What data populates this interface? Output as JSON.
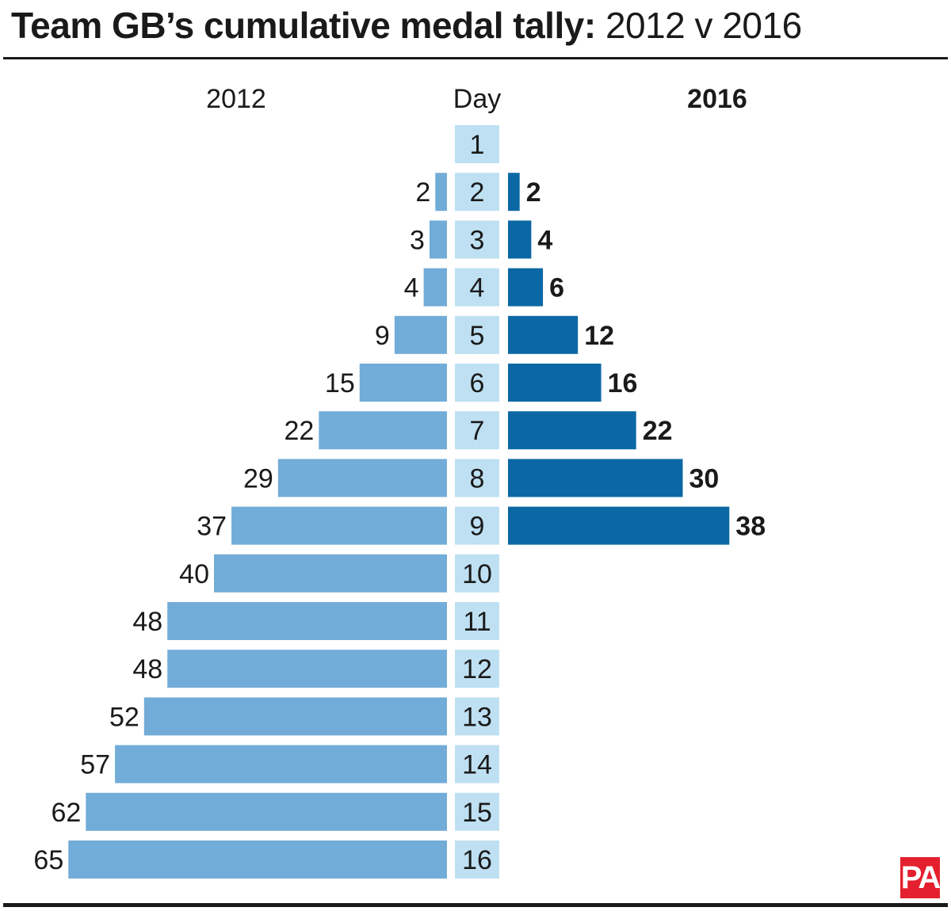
{
  "header": {
    "title_bold": "Team GB’s cumulative medal tally:",
    "title_light": "2012 v 2016"
  },
  "logo": {
    "text": "PA"
  },
  "colors": {
    "bar_2012": "#72acd8",
    "bar_2016": "#0b68a4",
    "day_cell": "#bee0f2",
    "text": "#1a1a1a",
    "logo_bg": "#e4202e"
  },
  "chart_data": {
    "type": "bar",
    "orientation": "horizontal-butterfly",
    "column_headers": {
      "left": "2012",
      "center": "Day",
      "right": "2016"
    },
    "categories": [
      "1",
      "2",
      "3",
      "4",
      "5",
      "6",
      "7",
      "8",
      "9",
      "10",
      "11",
      "12",
      "13",
      "14",
      "15",
      "16"
    ],
    "series": [
      {
        "name": "2012",
        "side": "left",
        "values": [
          0,
          2,
          3,
          4,
          9,
          15,
          22,
          29,
          37,
          40,
          48,
          48,
          52,
          57,
          62,
          65
        ],
        "labels": [
          "",
          "2",
          "3",
          "4",
          "9",
          "15",
          "22",
          "29",
          "37",
          "40",
          "48",
          "48",
          "52",
          "57",
          "62",
          "65"
        ]
      },
      {
        "name": "2016",
        "side": "right",
        "values": [
          0,
          2,
          4,
          6,
          12,
          16,
          22,
          30,
          38,
          null,
          null,
          null,
          null,
          null,
          null,
          null
        ],
        "labels": [
          "",
          "2",
          "4",
          "6",
          "12",
          "16",
          "22",
          "30",
          "38",
          "",
          "",
          "",
          "",
          "",
          "",
          ""
        ]
      }
    ]
  }
}
